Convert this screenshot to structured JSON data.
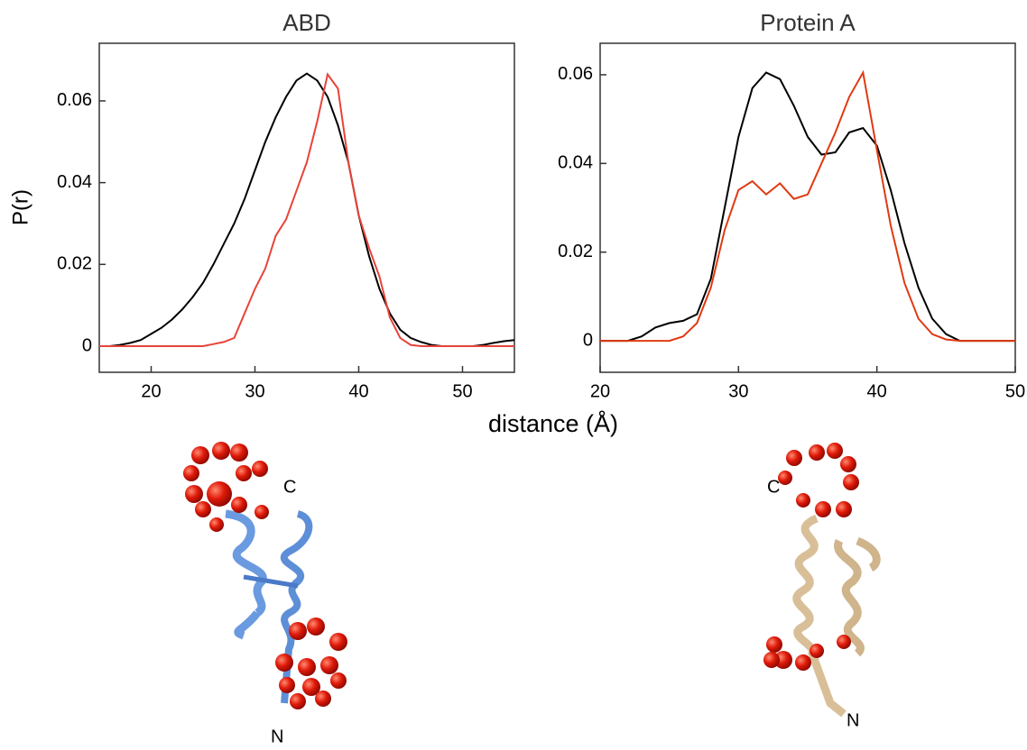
{
  "chart_data": [
    {
      "type": "line",
      "title": "ABD",
      "ylabel": "P(r)",
      "xlabel": "distance (Å)",
      "x": [
        15,
        16,
        17,
        18,
        19,
        20,
        21,
        22,
        23,
        24,
        25,
        26,
        27,
        28,
        29,
        30,
        31,
        32,
        33,
        34,
        35,
        36,
        37,
        38,
        39,
        40,
        41,
        42,
        43,
        44,
        45,
        46,
        47,
        48,
        49,
        50,
        51,
        52,
        53,
        54,
        55
      ],
      "series": [
        {
          "color": "#000000",
          "values": [
            0,
            0,
            0.0003,
            0.0008,
            0.0015,
            0.003,
            0.0045,
            0.0065,
            0.009,
            0.012,
            0.0155,
            0.02,
            0.025,
            0.03,
            0.036,
            0.043,
            0.05,
            0.056,
            0.061,
            0.065,
            0.0667,
            0.065,
            0.061,
            0.054,
            0.045,
            0.032,
            0.022,
            0.014,
            0.008,
            0.004,
            0.002,
            0.001,
            0.0003,
            0,
            0,
            0,
            0,
            0.0003,
            0.0008,
            0.0012,
            0.0015
          ]
        },
        {
          "color": "#e8433a",
          "values": [
            0,
            0,
            0,
            0,
            0,
            0,
            0,
            0,
            0,
            0,
            0,
            0.0005,
            0.001,
            0.002,
            0.008,
            0.014,
            0.019,
            0.027,
            0.031,
            0.038,
            0.045,
            0.055,
            0.0665,
            0.063,
            0.045,
            0.032,
            0.024,
            0.017,
            0.007,
            0.002,
            0.0003,
            0,
            0,
            0,
            0,
            0,
            0,
            0,
            0,
            0,
            0
          ]
        }
      ],
      "xlim": [
        15,
        55
      ],
      "xticks": [
        20,
        30,
        40,
        50
      ],
      "ylim": [
        -0.0064,
        0.0741
      ],
      "yticks": [
        0,
        0.02,
        0.04,
        0.06
      ]
    },
    {
      "type": "line",
      "title": "Protein A",
      "x": [
        20,
        21,
        22,
        23,
        24,
        25,
        26,
        27,
        28,
        29,
        30,
        31,
        32,
        33,
        34,
        35,
        36,
        37,
        38,
        39,
        40,
        41,
        42,
        43,
        44,
        45,
        46,
        47,
        48,
        49,
        50
      ],
      "series": [
        {
          "color": "#000000",
          "values": [
            0,
            0,
            0,
            0.001,
            0.003,
            0.004,
            0.0045,
            0.006,
            0.014,
            0.03,
            0.046,
            0.057,
            0.0605,
            0.059,
            0.053,
            0.046,
            0.042,
            0.0425,
            0.047,
            0.048,
            0.044,
            0.034,
            0.022,
            0.012,
            0.005,
            0.0015,
            0,
            0,
            0,
            0,
            0
          ]
        },
        {
          "color": "#e03a12",
          "values": [
            0,
            0,
            0,
            0,
            0,
            0,
            0.001,
            0.004,
            0.012,
            0.025,
            0.034,
            0.036,
            0.033,
            0.0355,
            0.032,
            0.033,
            0.04,
            0.047,
            0.055,
            0.0605,
            0.043,
            0.026,
            0.013,
            0.005,
            0.0015,
            0.0003,
            0,
            0,
            0,
            0,
            0
          ]
        }
      ],
      "xlim": [
        20,
        50
      ],
      "xticks": [
        20,
        30,
        40,
        50
      ],
      "ylim": [
        -0.0071,
        0.0671
      ],
      "yticks": [
        0,
        0.02,
        0.04,
        0.06
      ]
    }
  ],
  "structure_labels": {
    "abd": [
      "C",
      "N"
    ],
    "protein_a": [
      "C",
      "N"
    ]
  }
}
